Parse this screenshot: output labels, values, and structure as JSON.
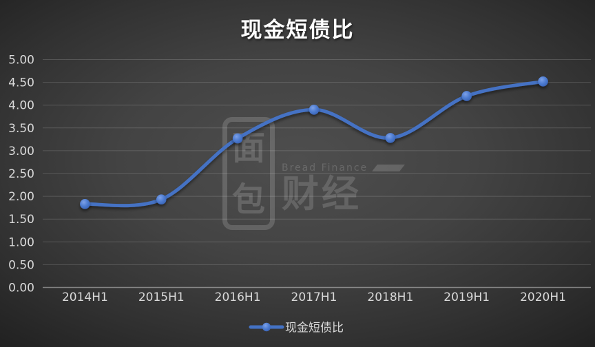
{
  "chart_data": {
    "type": "line",
    "title": "现金短债比",
    "categories": [
      "2014H1",
      "2015H1",
      "2016H1",
      "2017H1",
      "2018H1",
      "2019H1",
      "2020H1"
    ],
    "series": [
      {
        "name": "现金短债比",
        "values": [
          1.83,
          1.93,
          3.27,
          3.9,
          3.28,
          4.2,
          4.52
        ]
      }
    ],
    "xlabel": "",
    "ylabel": "",
    "ylim": [
      0,
      5
    ],
    "ytick_step": 0.5,
    "ytick_labels": [
      "0.00",
      "0.50",
      "1.00",
      "1.50",
      "2.00",
      "2.50",
      "3.00",
      "3.50",
      "4.00",
      "4.50",
      "5.00"
    ],
    "grid": true,
    "smooth": true,
    "legend_position": "bottom"
  },
  "legend": {
    "label": "现金短债比"
  },
  "watermark": {
    "logo_top": "面",
    "logo_bottom": "包",
    "brand": "Bread Finance",
    "chars": "财经"
  },
  "colors": {
    "line": "#4472C4",
    "marker_light": "#7DA1E8",
    "marker_mid": "#4C7BD0",
    "marker_dark": "#3962B4",
    "axis_text": "#d9d9d9",
    "title_text": "#ffffff",
    "background_center": "#4e4e4e",
    "background_corner": "#212121"
  }
}
